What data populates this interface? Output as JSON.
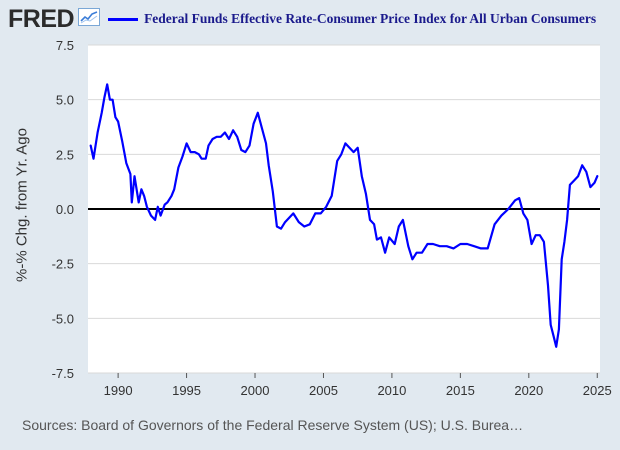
{
  "brand": {
    "logo_text": "FRED",
    "logo_icon": "trend-chart-icon"
  },
  "legend": {
    "label": "Federal Funds Effective Rate-Consumer Price Index for All Urban Consumers",
    "color": "#0000ff"
  },
  "source_text": "Sources: Board of Governors of the Federal Reserve System (US); U.S. Burea…",
  "colors": {
    "background": "#e1e9f0",
    "plot_bg": "#ffffff",
    "grid": "#d9d9d9",
    "line": "#0000ff",
    "zero_line": "#000000"
  },
  "chart_data": {
    "type": "line",
    "title": "Federal Funds Effective Rate-Consumer Price Index for All Urban Consumers",
    "xlabel": "",
    "ylabel": "%-% Chg. from Yr. Ago",
    "xlim": [
      1987.8,
      2025.2
    ],
    "ylim": [
      -7.5,
      7.5
    ],
    "x_ticks": [
      1990,
      1995,
      2000,
      2005,
      2010,
      2015,
      2020,
      2025
    ],
    "y_ticks": [
      7.5,
      5.0,
      2.5,
      0.0,
      -2.5,
      -5.0,
      -7.5
    ],
    "y_tick_labels": [
      "7.5",
      "5.0",
      "2.5",
      "0.0",
      "-2.5",
      "-5.0",
      "-7.5"
    ],
    "grid": true,
    "reference_line": 0,
    "series": [
      {
        "name": "Federal Funds Effective Rate-Consumer Price Index for All Urban Consumers",
        "x": [
          1988.0,
          1988.2,
          1988.5,
          1988.8,
          1989.0,
          1989.2,
          1989.4,
          1989.6,
          1989.8,
          1990.0,
          1990.3,
          1990.6,
          1990.9,
          1991.0,
          1991.2,
          1991.5,
          1991.7,
          1991.9,
          1992.1,
          1992.4,
          1992.7,
          1992.9,
          1993.1,
          1993.4,
          1993.6,
          1993.9,
          1994.1,
          1994.4,
          1994.7,
          1995.0,
          1995.3,
          1995.6,
          1995.9,
          1996.1,
          1996.4,
          1996.6,
          1996.9,
          1997.2,
          1997.5,
          1997.8,
          1998.1,
          1998.4,
          1998.7,
          1999.0,
          1999.3,
          1999.6,
          1999.9,
          2000.2,
          2000.5,
          2000.8,
          2001.0,
          2001.3,
          2001.6,
          2001.9,
          2002.2,
          2002.5,
          2002.8,
          2003.2,
          2003.6,
          2004.0,
          2004.4,
          2004.8,
          2005.2,
          2005.6,
          2006.0,
          2006.3,
          2006.6,
          2006.9,
          2007.2,
          2007.5,
          2007.8,
          2008.1,
          2008.4,
          2008.7,
          2008.9,
          2009.2,
          2009.5,
          2009.8,
          2010.2,
          2010.5,
          2010.8,
          2011.2,
          2011.5,
          2011.8,
          2012.2,
          2012.6,
          2013.0,
          2013.5,
          2014.0,
          2014.5,
          2015.0,
          2015.5,
          2016.0,
          2016.5,
          2017.0,
          2017.5,
          2018.0,
          2018.5,
          2019.0,
          2019.3,
          2019.6,
          2019.9,
          2020.2,
          2020.5,
          2020.8,
          2021.1,
          2021.4,
          2021.6,
          2021.8,
          2022.0,
          2022.2,
          2022.4,
          2022.6,
          2022.8,
          2023.0,
          2023.3,
          2023.6,
          2023.9,
          2024.2,
          2024.5,
          2024.8,
          2025.0
        ],
        "values": [
          2.9,
          2.3,
          3.5,
          4.4,
          5.1,
          5.7,
          5.0,
          5.0,
          4.2,
          4.0,
          3.1,
          2.1,
          1.6,
          0.3,
          1.5,
          0.3,
          0.9,
          0.6,
          0.1,
          -0.3,
          -0.5,
          0.1,
          -0.3,
          0.2,
          0.3,
          0.6,
          0.9,
          1.9,
          2.4,
          3.0,
          2.6,
          2.6,
          2.5,
          2.3,
          2.3,
          2.9,
          3.2,
          3.3,
          3.3,
          3.5,
          3.2,
          3.6,
          3.3,
          2.7,
          2.6,
          2.9,
          3.9,
          4.4,
          3.7,
          3.0,
          2.0,
          0.8,
          -0.8,
          -0.9,
          -0.6,
          -0.4,
          -0.2,
          -0.6,
          -0.8,
          -0.7,
          -0.2,
          -0.2,
          0.1,
          0.6,
          2.2,
          2.5,
          3.0,
          2.8,
          2.6,
          2.8,
          1.5,
          0.7,
          -0.5,
          -0.7,
          -1.4,
          -1.3,
          -2.0,
          -1.3,
          -1.6,
          -0.8,
          -0.5,
          -1.7,
          -2.3,
          -2.0,
          -2.0,
          -1.6,
          -1.6,
          -1.7,
          -1.7,
          -1.8,
          -1.6,
          -1.6,
          -1.7,
          -1.8,
          -1.8,
          -0.7,
          -0.3,
          0.0,
          0.4,
          0.5,
          -0.2,
          -0.5,
          -1.6,
          -1.2,
          -1.2,
          -1.5,
          -3.5,
          -5.3,
          -5.8,
          -6.3,
          -5.5,
          -2.3,
          -1.5,
          -0.5,
          1.1,
          1.3,
          1.5,
          2.0,
          1.7,
          1.0,
          1.2,
          1.5
        ]
      }
    ]
  }
}
